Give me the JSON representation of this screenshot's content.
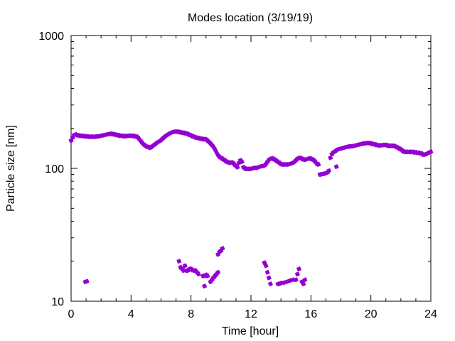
{
  "chart_data": {
    "type": "scatter",
    "title": "Modes location (3/19/19)",
    "xlabel": "Time [hour]",
    "ylabel": "Particle size [nm]",
    "xlim": [
      0,
      24
    ],
    "ylim": [
      10,
      1000
    ],
    "yscale": "log",
    "grid": false,
    "legend": "none",
    "color": "#9400d3",
    "marker": "star",
    "xticks": [
      0,
      4,
      8,
      12,
      16,
      20,
      24
    ],
    "xtick_labels": [
      "0",
      "4",
      "8",
      "12",
      "16",
      "20",
      "24"
    ],
    "yticks": [
      10,
      100,
      1000
    ],
    "ytick_labels": [
      "10",
      "100",
      "1000"
    ],
    "series": [
      {
        "values_desc": "main mode",
        "points": [
          [
            0.0,
            162
          ],
          [
            0.1,
            170
          ],
          [
            0.2,
            178
          ],
          [
            0.3,
            180
          ],
          [
            0.4,
            178
          ],
          [
            0.5,
            177
          ],
          [
            0.6,
            176
          ],
          [
            0.7,
            176
          ],
          [
            0.8,
            175
          ],
          [
            0.9,
            175
          ],
          [
            1.0,
            174
          ],
          [
            1.1,
            174
          ],
          [
            1.2,
            173
          ],
          [
            1.3,
            173
          ],
          [
            1.4,
            173
          ],
          [
            1.5,
            173
          ],
          [
            1.6,
            173
          ],
          [
            1.7,
            174
          ],
          [
            1.8,
            174
          ],
          [
            1.9,
            175
          ],
          [
            2.0,
            176
          ],
          [
            2.1,
            177
          ],
          [
            2.2,
            178
          ],
          [
            2.3,
            179
          ],
          [
            2.4,
            180
          ],
          [
            2.5,
            181
          ],
          [
            2.6,
            182
          ],
          [
            2.7,
            182
          ],
          [
            2.8,
            181
          ],
          [
            2.9,
            180
          ],
          [
            3.0,
            179
          ],
          [
            3.1,
            178
          ],
          [
            3.2,
            177
          ],
          [
            3.3,
            176
          ],
          [
            3.4,
            176
          ],
          [
            3.5,
            175
          ],
          [
            3.6,
            175
          ],
          [
            3.7,
            175
          ],
          [
            3.8,
            176
          ],
          [
            3.9,
            176
          ],
          [
            4.0,
            176
          ],
          [
            4.1,
            176
          ],
          [
            4.2,
            175
          ],
          [
            4.3,
            174
          ],
          [
            4.4,
            173
          ],
          [
            4.5,
            169
          ],
          [
            4.6,
            163
          ],
          [
            4.7,
            158
          ],
          [
            4.8,
            153
          ],
          [
            4.9,
            150
          ],
          [
            5.0,
            147
          ],
          [
            5.1,
            145
          ],
          [
            5.2,
            144
          ],
          [
            5.3,
            143
          ],
          [
            5.4,
            146
          ],
          [
            5.5,
            149
          ],
          [
            5.6,
            152
          ],
          [
            5.7,
            155
          ],
          [
            5.8,
            158
          ],
          [
            5.9,
            160
          ],
          [
            6.0,
            163
          ],
          [
            6.1,
            167
          ],
          [
            6.2,
            171
          ],
          [
            6.3,
            175
          ],
          [
            6.4,
            178
          ],
          [
            6.5,
            181
          ],
          [
            6.6,
            184
          ],
          [
            6.7,
            186
          ],
          [
            6.8,
            188
          ],
          [
            6.9,
            189
          ],
          [
            7.0,
            189
          ],
          [
            7.1,
            189
          ],
          [
            7.2,
            188
          ],
          [
            7.3,
            187
          ],
          [
            7.4,
            186
          ],
          [
            7.5,
            185
          ],
          [
            7.6,
            184
          ],
          [
            7.7,
            183
          ],
          [
            7.8,
            181
          ],
          [
            7.9,
            179
          ],
          [
            8.0,
            177
          ],
          [
            8.1,
            175
          ],
          [
            8.2,
            173
          ],
          [
            8.3,
            171
          ],
          [
            8.4,
            170
          ],
          [
            8.5,
            169
          ],
          [
            8.6,
            168
          ],
          [
            8.7,
            167
          ],
          [
            8.8,
            166
          ],
          [
            8.9,
            166
          ],
          [
            9.0,
            165
          ],
          [
            9.1,
            162
          ],
          [
            9.2,
            158
          ],
          [
            9.3,
            154
          ],
          [
            9.4,
            150
          ],
          [
            9.5,
            145
          ],
          [
            9.6,
            139
          ],
          [
            9.7,
            132
          ],
          [
            9.8,
            126
          ],
          [
            9.9,
            122
          ],
          [
            10.0,
            120
          ],
          [
            10.1,
            118
          ],
          [
            10.2,
            116
          ],
          [
            10.3,
            114
          ],
          [
            10.4,
            112
          ],
          [
            10.5,
            111
          ],
          [
            10.6,
            110
          ],
          [
            10.7,
            111
          ],
          [
            10.8,
            110
          ],
          [
            10.9,
            107
          ],
          [
            11.0,
            104
          ],
          [
            11.1,
            102
          ],
          [
            11.2,
            110
          ],
          [
            11.3,
            115
          ],
          [
            11.4,
            112
          ],
          [
            11.5,
            102
          ],
          [
            11.6,
            100
          ],
          [
            11.7,
            99
          ],
          [
            11.8,
            99
          ],
          [
            11.9,
            99
          ],
          [
            12.0,
            99
          ],
          [
            12.1,
            100
          ],
          [
            12.2,
            101
          ],
          [
            12.3,
            101
          ],
          [
            12.4,
            101
          ],
          [
            12.5,
            102
          ],
          [
            12.6,
            103
          ],
          [
            12.7,
            104
          ],
          [
            12.8,
            104
          ],
          [
            12.9,
            105
          ],
          [
            13.0,
            108
          ],
          [
            13.1,
            112
          ],
          [
            13.2,
            116
          ],
          [
            13.3,
            118
          ],
          [
            13.4,
            119
          ],
          [
            13.5,
            118
          ],
          [
            13.6,
            116
          ],
          [
            13.7,
            114
          ],
          [
            13.8,
            112
          ],
          [
            13.9,
            110
          ],
          [
            14.0,
            108
          ],
          [
            14.1,
            107
          ],
          [
            14.2,
            107
          ],
          [
            14.3,
            107
          ],
          [
            14.4,
            107
          ],
          [
            14.5,
            107
          ],
          [
            14.6,
            108
          ],
          [
            14.7,
            109
          ],
          [
            14.8,
            110
          ],
          [
            14.9,
            112
          ],
          [
            15.0,
            115
          ],
          [
            15.1,
            118
          ],
          [
            15.2,
            120
          ],
          [
            15.3,
            120
          ],
          [
            15.4,
            118
          ],
          [
            15.5,
            117
          ],
          [
            15.6,
            116
          ],
          [
            15.7,
            117
          ],
          [
            15.8,
            118
          ],
          [
            15.9,
            119
          ],
          [
            16.0,
            118
          ],
          [
            16.1,
            117
          ],
          [
            16.2,
            115
          ],
          [
            16.3,
            112
          ],
          [
            16.4,
            108
          ],
          [
            16.5,
            107
          ],
          [
            16.6,
            90
          ],
          [
            16.7,
            90
          ],
          [
            16.8,
            91
          ],
          [
            16.9,
            91
          ],
          [
            17.0,
            92
          ],
          [
            17.1,
            93
          ],
          [
            17.2,
            96
          ],
          [
            17.3,
            120
          ],
          [
            17.4,
            128
          ],
          [
            17.5,
            132
          ],
          [
            17.6,
            134
          ],
          [
            17.7,
            137
          ],
          [
            17.8,
            139
          ],
          [
            17.9,
            140
          ],
          [
            18.0,
            141
          ],
          [
            18.1,
            142
          ],
          [
            18.2,
            143
          ],
          [
            18.3,
            144
          ],
          [
            18.4,
            145
          ],
          [
            18.5,
            146
          ],
          [
            18.6,
            146
          ],
          [
            18.7,
            147
          ],
          [
            18.8,
            147
          ],
          [
            18.9,
            148
          ],
          [
            19.0,
            149
          ],
          [
            19.1,
            150
          ],
          [
            19.2,
            151
          ],
          [
            19.3,
            152
          ],
          [
            19.4,
            153
          ],
          [
            19.5,
            154
          ],
          [
            19.6,
            154
          ],
          [
            19.7,
            155
          ],
          [
            19.8,
            155
          ],
          [
            19.9,
            155
          ],
          [
            20.0,
            154
          ],
          [
            20.1,
            153
          ],
          [
            20.2,
            152
          ],
          [
            20.3,
            151
          ],
          [
            20.4,
            150
          ],
          [
            20.5,
            149
          ],
          [
            20.6,
            149
          ],
          [
            20.7,
            149
          ],
          [
            20.8,
            150
          ],
          [
            20.9,
            150
          ],
          [
            21.0,
            150
          ],
          [
            21.1,
            149
          ],
          [
            21.2,
            148
          ],
          [
            21.3,
            148
          ],
          [
            21.4,
            148
          ],
          [
            21.5,
            148
          ],
          [
            21.6,
            147
          ],
          [
            21.7,
            145
          ],
          [
            21.8,
            143
          ],
          [
            21.9,
            141
          ],
          [
            22.0,
            139
          ],
          [
            22.1,
            136
          ],
          [
            22.2,
            134
          ],
          [
            22.3,
            133
          ],
          [
            22.4,
            133
          ],
          [
            22.5,
            133
          ],
          [
            22.6,
            133
          ],
          [
            22.7,
            133
          ],
          [
            22.8,
            133
          ],
          [
            22.9,
            132
          ],
          [
            23.0,
            132
          ],
          [
            23.1,
            131
          ],
          [
            23.2,
            131
          ],
          [
            23.3,
            130
          ],
          [
            23.4,
            129
          ],
          [
            23.5,
            127
          ],
          [
            23.6,
            127
          ],
          [
            23.7,
            128
          ],
          [
            23.8,
            130
          ],
          [
            23.9,
            132
          ],
          [
            24.0,
            133
          ]
        ]
      },
      {
        "values_desc": "secondary mode",
        "points": [
          [
            17.7,
            103
          ],
          [
            0.95,
            14.0
          ],
          [
            1.05,
            14.1
          ],
          [
            7.2,
            20.0
          ],
          [
            7.3,
            18.0
          ],
          [
            7.4,
            17.5
          ],
          [
            7.5,
            17.0
          ],
          [
            7.6,
            18.5
          ],
          [
            7.7,
            17.0
          ],
          [
            7.8,
            17.0
          ],
          [
            7.9,
            17.5
          ],
          [
            8.0,
            17.5
          ],
          [
            8.1,
            17.2
          ],
          [
            8.2,
            17.0
          ],
          [
            8.3,
            17.0
          ],
          [
            8.4,
            16.5
          ],
          [
            8.5,
            16.0
          ],
          [
            8.8,
            15.5
          ],
          [
            8.9,
            15.5
          ],
          [
            9.0,
            15.8
          ],
          [
            9.1,
            15.5
          ],
          [
            8.9,
            13.0
          ],
          [
            9.3,
            14.0
          ],
          [
            9.4,
            14.5
          ],
          [
            9.5,
            15.0
          ],
          [
            9.6,
            15.5
          ],
          [
            9.7,
            16.0
          ],
          [
            9.8,
            16.5
          ],
          [
            9.8,
            22.5
          ],
          [
            9.9,
            23.5
          ],
          [
            10.0,
            24.0
          ],
          [
            10.1,
            25.0
          ],
          [
            12.9,
            19.5
          ],
          [
            13.0,
            18.5
          ],
          [
            13.1,
            16.5
          ],
          [
            13.2,
            15.0
          ],
          [
            13.3,
            13.5
          ],
          [
            13.8,
            13.5
          ],
          [
            13.9,
            13.5
          ],
          [
            14.0,
            13.7
          ],
          [
            14.2,
            13.8
          ],
          [
            14.4,
            14.0
          ],
          [
            14.6,
            14.3
          ],
          [
            14.8,
            14.5
          ],
          [
            15.0,
            14.5
          ],
          [
            15.1,
            16.0
          ],
          [
            15.2,
            17.5
          ],
          [
            15.4,
            14.0
          ],
          [
            15.5,
            13.5
          ],
          [
            15.6,
            14.5
          ]
        ]
      }
    ]
  }
}
